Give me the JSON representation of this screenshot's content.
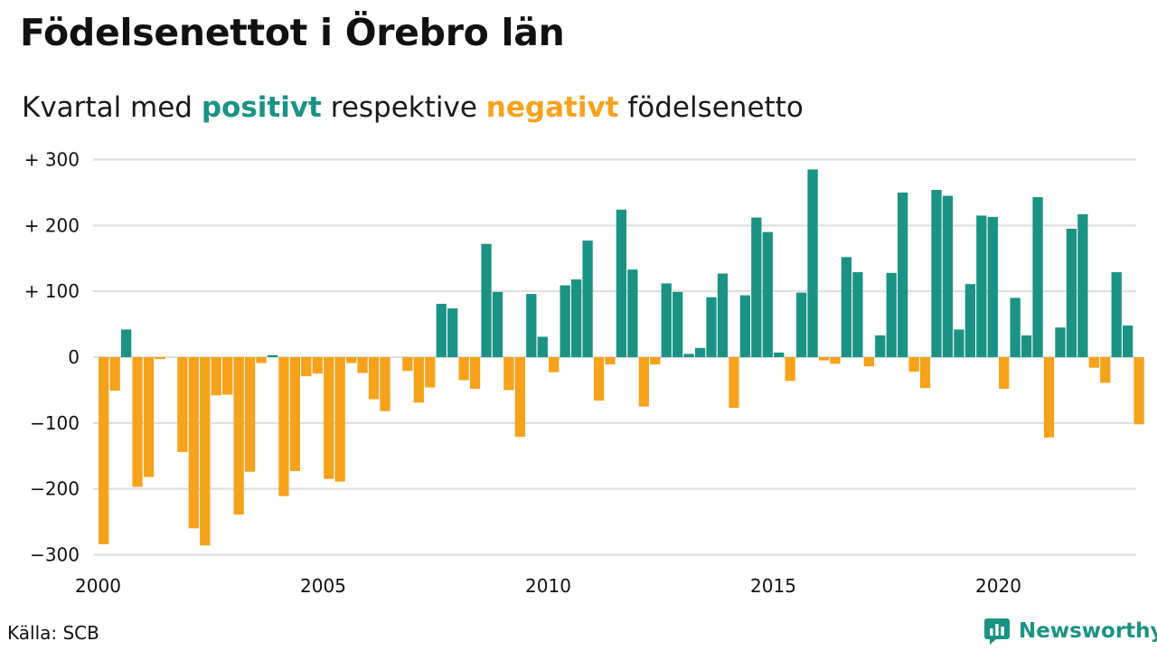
{
  "title": "Födelsenettot i Örebro län",
  "subtitle": {
    "prefix": "Kvartal med",
    "positive_word": "positivt",
    "middle": "respektive",
    "negative_word": "negativt",
    "suffix": "födelsenetto"
  },
  "source": "Källa: SCB",
  "brand": {
    "name": "Newsworthy",
    "icon": "newsworthy-logo-icon"
  },
  "colors": {
    "positive": "#1a9384",
    "negative": "#f7a21b",
    "grid": "#dddddd",
    "text": "#111111"
  },
  "chart_data": {
    "type": "bar",
    "title": "Födelsenettot i Örebro län",
    "subtitle": "Kvartal med positivt respektive negativt födelsenetto",
    "xlabel": "",
    "ylabel": "",
    "ylim": [
      -310,
      300
    ],
    "yticks": [
      300,
      200,
      100,
      0,
      -100,
      -200,
      -300
    ],
    "ytick_labels": [
      "+ 300",
      "+ 200",
      "+ 100",
      "0",
      "−100",
      "−200",
      "−300"
    ],
    "xlim": [
      2000,
      2023.25
    ],
    "xticks": [
      2000,
      2005,
      2010,
      2015,
      2020
    ],
    "xtick_labels": [
      "2000",
      "2005",
      "2010",
      "2015",
      "2020"
    ],
    "grid": true,
    "legend": "none (colors explained in subtitle)",
    "x_unit": "quarter starting 2000 Q1",
    "categories": [
      "2000 Q1",
      "2000 Q2",
      "2000 Q3",
      "2000 Q4",
      "2001 Q1",
      "2001 Q2",
      "2001 Q3",
      "2001 Q4",
      "2002 Q1",
      "2002 Q2",
      "2002 Q3",
      "2002 Q4",
      "2003 Q1",
      "2003 Q2",
      "2003 Q3",
      "2003 Q4",
      "2004 Q1",
      "2004 Q2",
      "2004 Q3",
      "2004 Q4",
      "2005 Q1",
      "2005 Q2",
      "2005 Q3",
      "2005 Q4",
      "2006 Q1",
      "2006 Q2",
      "2006 Q3",
      "2006 Q4",
      "2007 Q1",
      "2007 Q2",
      "2007 Q3",
      "2007 Q4",
      "2008 Q1",
      "2008 Q2",
      "2008 Q3",
      "2008 Q4",
      "2009 Q1",
      "2009 Q2",
      "2009 Q3",
      "2009 Q4",
      "2010 Q1",
      "2010 Q2",
      "2010 Q3",
      "2010 Q4",
      "2011 Q1",
      "2011 Q2",
      "2011 Q3",
      "2011 Q4",
      "2012 Q1",
      "2012 Q2",
      "2012 Q3",
      "2012 Q4",
      "2013 Q1",
      "2013 Q2",
      "2013 Q3",
      "2013 Q4",
      "2014 Q1",
      "2014 Q2",
      "2014 Q3",
      "2014 Q4",
      "2015 Q1",
      "2015 Q2",
      "2015 Q3",
      "2015 Q4",
      "2016 Q1",
      "2016 Q2",
      "2016 Q3",
      "2016 Q4",
      "2017 Q1",
      "2017 Q2",
      "2017 Q3",
      "2017 Q4",
      "2018 Q1",
      "2018 Q2",
      "2018 Q3",
      "2018 Q4",
      "2019 Q1",
      "2019 Q2",
      "2019 Q3",
      "2019 Q4",
      "2020 Q1",
      "2020 Q2",
      "2020 Q3",
      "2020 Q4",
      "2021 Q1",
      "2021 Q2",
      "2021 Q3",
      "2021 Q4",
      "2022 Q1",
      "2022 Q2",
      "2022 Q3",
      "2022 Q4",
      "2023 Q1"
    ],
    "values": [
      -284,
      -51,
      42,
      -197,
      -182,
      -3,
      0,
      -144,
      -260,
      -286,
      -58,
      -57,
      -239,
      -174,
      -9,
      3,
      -211,
      -173,
      -29,
      -25,
      -185,
      -189,
      -9,
      -24,
      -64,
      -82,
      0,
      -21,
      -69,
      -46,
      81,
      74,
      -35,
      -48,
      172,
      99,
      -50,
      -121,
      96,
      31,
      -23,
      109,
      118,
      177,
      -66,
      -11,
      224,
      133,
      -75,
      -11,
      112,
      99,
      5,
      14,
      91,
      127,
      -77,
      94,
      212,
      190,
      7,
      -36,
      98,
      285,
      -5,
      -10,
      152,
      129,
      -14,
      33,
      128,
      250,
      -22,
      -47,
      254,
      245,
      42,
      111,
      215,
      213,
      -48,
      90,
      33,
      243,
      -122,
      45,
      195,
      217,
      -16,
      -39,
      129,
      48,
      -102
    ]
  }
}
